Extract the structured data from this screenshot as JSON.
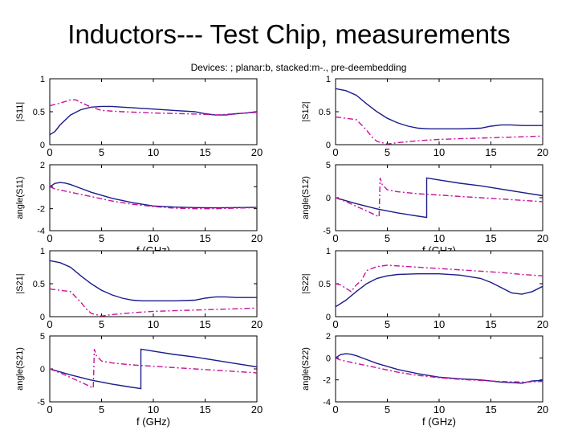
{
  "title": "Inductors--- Test Chip, measurements",
  "subtitle": "Devices: ; planar:b, stacked:m-., pre-deembedding",
  "colors": {
    "planar": "#1c1c8c",
    "stacked": "#c8149b",
    "axis": "#000000"
  },
  "chart_data": [
    {
      "type": "line",
      "panel": "top-left-magnitude",
      "ylabel": "|S11|",
      "ylim": [
        0,
        1
      ],
      "xlim": [
        0,
        20
      ],
      "yticks": [
        "0",
        "0.5",
        "1"
      ],
      "xticks": [
        "0",
        "5",
        "10",
        "15",
        "20"
      ],
      "xlabel": "",
      "series": [
        {
          "style": "solid",
          "color": "#1c1c8c",
          "x": [
            0,
            0.5,
            1,
            2,
            3,
            4,
            5,
            6,
            7,
            8,
            9,
            10,
            12,
            14,
            15,
            16,
            17,
            18,
            19,
            20
          ],
          "y": [
            0.15,
            0.2,
            0.3,
            0.45,
            0.53,
            0.57,
            0.58,
            0.58,
            0.57,
            0.56,
            0.55,
            0.54,
            0.52,
            0.5,
            0.47,
            0.45,
            0.45,
            0.47,
            0.48,
            0.5
          ]
        },
        {
          "style": "dashdot",
          "color": "#c8149b",
          "x": [
            0,
            1,
            2,
            2.5,
            3,
            4,
            5,
            7,
            10,
            13,
            15,
            16,
            17,
            18,
            19,
            20
          ],
          "y": [
            0.59,
            0.63,
            0.68,
            0.68,
            0.64,
            0.57,
            0.52,
            0.5,
            0.48,
            0.47,
            0.46,
            0.45,
            0.46,
            0.47,
            0.48,
            0.49
          ]
        }
      ]
    },
    {
      "type": "line",
      "panel": "top-right-magnitude",
      "ylabel": "|S12|",
      "ylim": [
        0,
        1
      ],
      "xlim": [
        0,
        20
      ],
      "yticks": [
        "0",
        "0.5",
        "1"
      ],
      "xticks": [
        "0",
        "5",
        "10",
        "15",
        "20"
      ],
      "xlabel": "",
      "series": [
        {
          "style": "solid",
          "color": "#1c1c8c",
          "x": [
            0,
            1,
            2,
            3,
            4,
            5,
            6,
            7,
            8,
            9,
            10,
            12,
            14,
            15,
            16,
            17,
            18,
            19,
            20
          ],
          "y": [
            0.85,
            0.82,
            0.75,
            0.62,
            0.5,
            0.4,
            0.33,
            0.28,
            0.25,
            0.24,
            0.24,
            0.24,
            0.25,
            0.28,
            0.3,
            0.3,
            0.29,
            0.29,
            0.29
          ]
        },
        {
          "style": "dashdot",
          "color": "#c8149b",
          "x": [
            0,
            1,
            2,
            3,
            3.5,
            4,
            5,
            6,
            8,
            10,
            12,
            14,
            16,
            18,
            20
          ],
          "y": [
            0.42,
            0.4,
            0.38,
            0.22,
            0.12,
            0.05,
            0.01,
            0.03,
            0.06,
            0.08,
            0.09,
            0.1,
            0.11,
            0.12,
            0.13
          ]
        }
      ]
    },
    {
      "type": "line",
      "panel": "top-left-angle",
      "ylabel": "angle(S11)",
      "ylim": [
        -4,
        2
      ],
      "xlim": [
        0,
        20
      ],
      "yticks": [
        "-4",
        "-2",
        "0",
        "2"
      ],
      "xticks": [
        "0",
        "5",
        "10",
        "15",
        "20"
      ],
      "xlabel": "f (GHz)",
      "series": [
        {
          "style": "solid",
          "color": "#1c1c8c",
          "x": [
            0,
            0.5,
            1,
            1.5,
            2,
            3,
            4,
            6,
            8,
            10,
            12,
            14,
            16,
            18,
            20
          ],
          "y": [
            0.0,
            0.3,
            0.38,
            0.33,
            0.2,
            -0.15,
            -0.5,
            -1.05,
            -1.45,
            -1.75,
            -1.85,
            -1.9,
            -1.92,
            -1.9,
            -1.88
          ]
        },
        {
          "style": "dashdot",
          "color": "#c8149b",
          "x": [
            0,
            0.5,
            1,
            2,
            4,
            6,
            8,
            10,
            12,
            14,
            16,
            18,
            20
          ],
          "y": [
            0.0,
            -0.2,
            -0.3,
            -0.5,
            -0.9,
            -1.3,
            -1.6,
            -1.8,
            -1.95,
            -2.0,
            -2.0,
            -1.95,
            -1.9
          ]
        }
      ]
    },
    {
      "type": "line",
      "panel": "top-right-angle",
      "ylabel": "angle(S12)",
      "ylim": [
        -5,
        5
      ],
      "xlim": [
        0,
        20
      ],
      "yticks": [
        "-5",
        "0",
        "5"
      ],
      "xticks": [
        "0",
        "5",
        "10",
        "15",
        "20"
      ],
      "xlabel": "f (GHz)",
      "series": [
        {
          "style": "solid",
          "color": "#1c1c8c",
          "x": [
            0,
            2,
            4,
            6,
            8,
            8.8,
            8.8,
            10,
            12,
            14,
            16,
            18,
            20
          ],
          "y": [
            0.0,
            -0.9,
            -1.7,
            -2.3,
            -2.8,
            -3.0,
            3.0,
            2.7,
            2.2,
            1.8,
            1.3,
            0.8,
            0.3
          ]
        },
        {
          "style": "dashdot",
          "color": "#c8149b",
          "x": [
            0,
            1,
            2,
            3,
            4.2,
            4.3,
            4.5,
            5,
            6,
            8,
            10,
            12,
            14,
            16,
            18,
            20
          ],
          "y": [
            0.0,
            -0.6,
            -1.3,
            -2.0,
            -2.9,
            3.0,
            2.0,
            1.2,
            0.9,
            0.6,
            0.4,
            0.2,
            0.0,
            -0.2,
            -0.4,
            -0.6
          ]
        }
      ]
    },
    {
      "type": "line",
      "panel": "bottom-left-magnitude",
      "ylabel": "|S21|",
      "ylim": [
        0,
        1
      ],
      "xlim": [
        0,
        20
      ],
      "yticks": [
        "0",
        "0.5",
        "1"
      ],
      "xticks": [
        "0",
        "5",
        "10",
        "15",
        "20"
      ],
      "xlabel": "",
      "series": [
        {
          "style": "solid",
          "color": "#1c1c8c",
          "x": [
            0,
            1,
            2,
            3,
            4,
            5,
            6,
            7,
            8,
            9,
            10,
            12,
            14,
            15,
            16,
            17,
            18,
            19,
            20
          ],
          "y": [
            0.85,
            0.82,
            0.75,
            0.62,
            0.5,
            0.4,
            0.33,
            0.28,
            0.25,
            0.24,
            0.24,
            0.24,
            0.25,
            0.28,
            0.3,
            0.3,
            0.29,
            0.29,
            0.29
          ]
        },
        {
          "style": "dashdot",
          "color": "#c8149b",
          "x": [
            0,
            1,
            2,
            3,
            3.5,
            4,
            5,
            6,
            8,
            10,
            12,
            14,
            16,
            18,
            20
          ],
          "y": [
            0.42,
            0.4,
            0.38,
            0.22,
            0.12,
            0.05,
            0.01,
            0.03,
            0.06,
            0.08,
            0.09,
            0.1,
            0.11,
            0.12,
            0.13
          ]
        }
      ]
    },
    {
      "type": "line",
      "panel": "bottom-right-magnitude",
      "ylabel": "|S22|",
      "ylim": [
        0,
        1
      ],
      "xlim": [
        0,
        20
      ],
      "yticks": [
        "0",
        "0.5",
        "1"
      ],
      "xticks": [
        "0",
        "5",
        "10",
        "15",
        "20"
      ],
      "xlabel": "",
      "series": [
        {
          "style": "solid",
          "color": "#1c1c8c",
          "x": [
            0,
            1,
            2,
            3,
            4,
            5,
            6,
            8,
            10,
            12,
            14,
            15,
            16,
            17,
            18,
            19,
            20
          ],
          "y": [
            0.15,
            0.25,
            0.38,
            0.5,
            0.58,
            0.62,
            0.64,
            0.65,
            0.65,
            0.63,
            0.58,
            0.52,
            0.44,
            0.36,
            0.34,
            0.38,
            0.46
          ]
        },
        {
          "style": "dashdot",
          "color": "#c8149b",
          "x": [
            0,
            0.5,
            1,
            1.5,
            2,
            2.5,
            3,
            4,
            5,
            7,
            10,
            13,
            16,
            18,
            20
          ],
          "y": [
            0.5,
            0.48,
            0.43,
            0.38,
            0.48,
            0.55,
            0.7,
            0.76,
            0.78,
            0.76,
            0.73,
            0.7,
            0.67,
            0.64,
            0.62
          ]
        }
      ]
    },
    {
      "type": "line",
      "panel": "bottom-left-angle",
      "ylabel": "angle(S21)",
      "ylim": [
        -5,
        5
      ],
      "xlim": [
        0,
        20
      ],
      "yticks": [
        "-5",
        "0",
        "5"
      ],
      "xticks": [
        "0",
        "5",
        "10",
        "15",
        "20"
      ],
      "xlabel": "f (GHz)",
      "series": [
        {
          "style": "solid",
          "color": "#1c1c8c",
          "x": [
            0,
            2,
            4,
            6,
            8,
            8.8,
            8.8,
            10,
            12,
            14,
            16,
            18,
            20
          ],
          "y": [
            0.0,
            -0.9,
            -1.7,
            -2.3,
            -2.8,
            -3.0,
            3.0,
            2.7,
            2.2,
            1.8,
            1.3,
            0.8,
            0.3
          ]
        },
        {
          "style": "dashdot",
          "color": "#c8149b",
          "x": [
            0,
            1,
            2,
            3,
            4.2,
            4.3,
            4.5,
            5,
            6,
            8,
            10,
            12,
            14,
            16,
            18,
            20
          ],
          "y": [
            0.0,
            -0.6,
            -1.3,
            -2.0,
            -2.9,
            3.0,
            2.0,
            1.2,
            0.9,
            0.6,
            0.4,
            0.2,
            0.0,
            -0.2,
            -0.4,
            -0.6
          ]
        }
      ]
    },
    {
      "type": "line",
      "panel": "bottom-right-angle",
      "ylabel": "angle(S22)",
      "ylim": [
        -4,
        2
      ],
      "xlim": [
        0,
        20
      ],
      "yticks": [
        "-4",
        "-2",
        "0",
        "2"
      ],
      "xticks": [
        "0",
        "5",
        "10",
        "15",
        "20"
      ],
      "xlabel": "f (GHz)",
      "series": [
        {
          "style": "solid",
          "color": "#1c1c8c",
          "x": [
            0,
            0.5,
            1,
            1.5,
            2,
            3,
            4,
            6,
            8,
            10,
            12,
            14,
            16,
            18,
            19,
            20
          ],
          "y": [
            0.0,
            0.3,
            0.38,
            0.33,
            0.2,
            -0.15,
            -0.5,
            -1.05,
            -1.45,
            -1.75,
            -1.9,
            -2.0,
            -2.2,
            -2.3,
            -2.1,
            -2.05
          ]
        },
        {
          "style": "dashdot",
          "color": "#c8149b",
          "x": [
            0,
            0.5,
            1,
            2,
            4,
            6,
            8,
            10,
            12,
            14,
            16,
            18,
            20
          ],
          "y": [
            0.0,
            -0.2,
            -0.3,
            -0.5,
            -0.9,
            -1.3,
            -1.6,
            -1.8,
            -1.95,
            -2.05,
            -2.15,
            -2.2,
            -2.15
          ]
        }
      ]
    }
  ]
}
